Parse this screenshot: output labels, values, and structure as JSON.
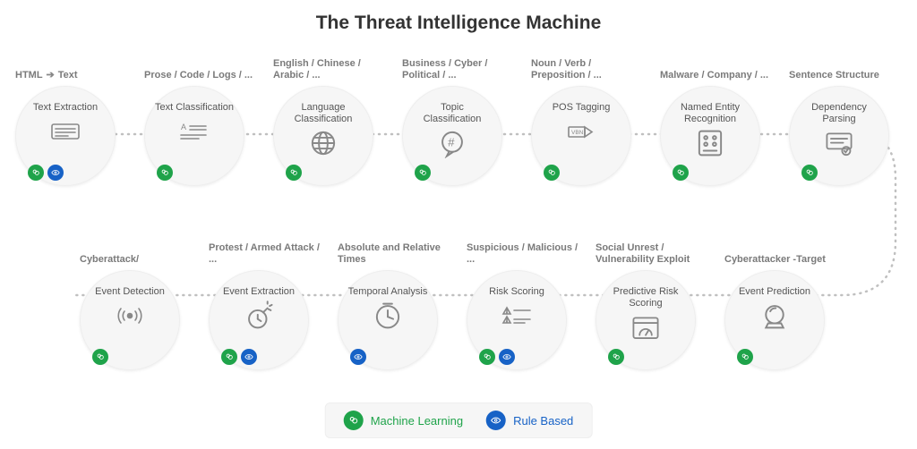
{
  "title": "The Threat Intelligence Machine",
  "colors": {
    "ml_badge": "#1fa34a",
    "rb_badge": "#1762c6",
    "circle_bg": "#f6f6f6",
    "header_text": "#7a7a7a",
    "label_text": "#555555",
    "dotted": "#c0c0c0"
  },
  "legend": {
    "ml": "Machine Learning",
    "rb": "Rule Based"
  },
  "rows": [
    {
      "stages": [
        {
          "header": "HTML → Text",
          "label": "Text Extraction",
          "icon": "lines",
          "ml": true,
          "rb": true
        },
        {
          "header": "Prose / Code / Logs / ...",
          "label": "Text Classification",
          "icon": "textlines",
          "ml": true,
          "rb": false
        },
        {
          "header": "English / Chinese / Arabic / ...",
          "label": "Language Classification",
          "icon": "globe",
          "ml": true,
          "rb": false
        },
        {
          "header": "Business / Cyber / Political / ...",
          "label": "Topic Classification",
          "icon": "hashbubble",
          "ml": true,
          "rb": false
        },
        {
          "header": "Noun / Verb / Preposition / ...",
          "label": "POS Tagging",
          "icon": "tag",
          "ml": true,
          "rb": false
        },
        {
          "header": "Malware / Company / ...",
          "label": "Named Entity Recognition",
          "icon": "grid",
          "ml": true,
          "rb": false
        },
        {
          "header": "Sentence Structure",
          "label": "Dependency Parsing",
          "icon": "tree",
          "ml": true,
          "rb": false
        }
      ]
    },
    {
      "stages": [
        {
          "header": "Cyberattack/",
          "label": "Event Detection",
          "icon": "signal",
          "ml": true,
          "rb": false
        },
        {
          "header": "Protest / Armed Attack / ...",
          "label": "Event Extraction",
          "icon": "bomb",
          "ml": true,
          "rb": true
        },
        {
          "header": "Absolute and Relative Times",
          "label": "Temporal Analysis",
          "icon": "clock",
          "ml": false,
          "rb": true
        },
        {
          "header": "Suspicious / Malicious / ...",
          "label": "Risk Scoring",
          "icon": "warnlines",
          "ml": true,
          "rb": true
        },
        {
          "header": "Social Unrest / Vulnerability Exploit",
          "label": "Predictive Risk Scoring",
          "icon": "dashboard",
          "ml": true,
          "rb": false
        },
        {
          "header": "Cyberattacker -Target",
          "label": "Event Prediction",
          "icon": "crystal",
          "ml": true,
          "rb": false
        }
      ]
    }
  ]
}
